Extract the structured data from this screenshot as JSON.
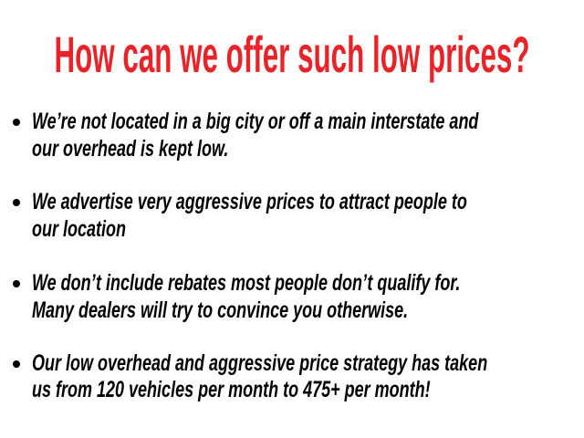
{
  "title": "How can we offer such low prices?",
  "colors": {
    "title": "#e8242b",
    "body": "#000000"
  },
  "bullets": [
    {
      "lines": [
        "We’re not located in a big city or off a main interstate and",
        "our overhead is kept low."
      ]
    },
    {
      "lines": [
        "We advertise very aggressive prices to attract people to",
        "our location"
      ]
    },
    {
      "lines": [
        "We don’t include rebates most people don’t qualify for.",
        "Many dealers will try to convince you otherwise."
      ]
    },
    {
      "lines": [
        "Our low overhead and aggressive price strategy has taken",
        "us from 120 vehicles per month to 475+ per month!"
      ]
    }
  ]
}
